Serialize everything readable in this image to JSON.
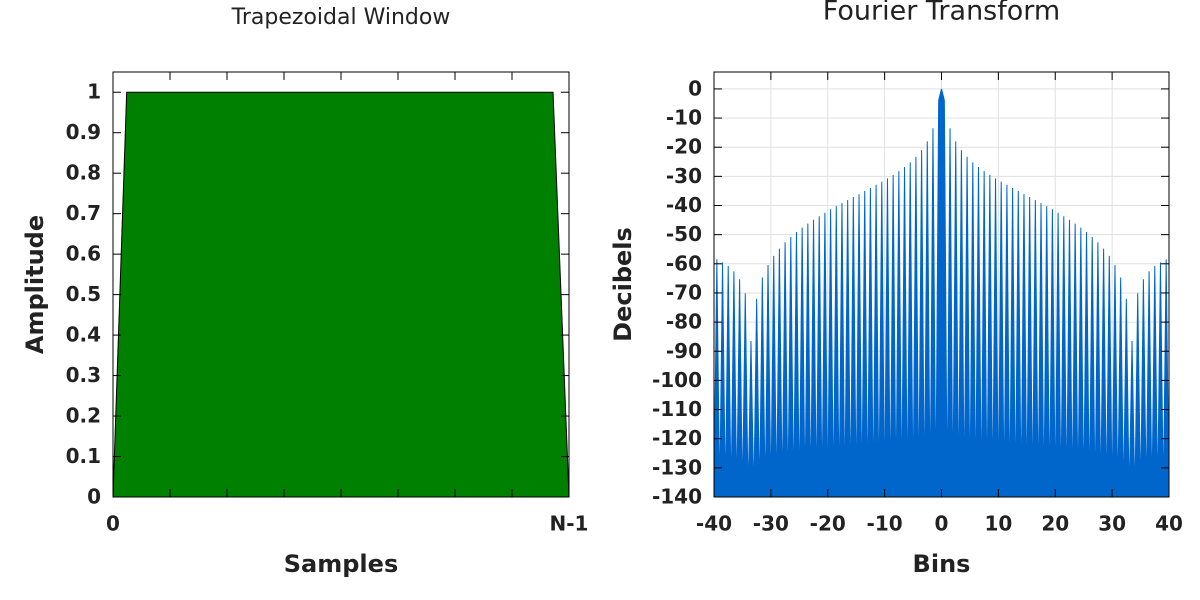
{
  "chart_data": [
    {
      "type": "area",
      "title": "Trapezoidal Window",
      "xlabel": "Samples",
      "ylabel": "Amplitude",
      "x": [
        0,
        0.03,
        0.965,
        1
      ],
      "values": [
        0,
        1,
        1,
        0
      ],
      "color": "#008000",
      "xlim": [
        0,
        1
      ],
      "ylim": [
        0,
        1.05
      ],
      "xticks": [
        0,
        {
          "value": 1,
          "label": "N-1"
        }
      ],
      "yticks": [
        0,
        0.1,
        0.2,
        0.3,
        0.4,
        0.5,
        0.6,
        0.7,
        0.8,
        0.9,
        1
      ],
      "grid": false
    },
    {
      "type": "area",
      "title": "Fourier Transform",
      "xlabel": "Bins",
      "ylabel": "Decibels",
      "x": [
        -40,
        -39.5,
        -39,
        -38.5,
        -38,
        -37.5,
        -37,
        -36.5,
        -36,
        -35.5,
        -35,
        -34.5,
        -34,
        -33.5,
        -33,
        -32.5,
        -32,
        -31.5,
        -31,
        -30.5,
        -30,
        -29.5,
        -29,
        -28.5,
        -28,
        -27.5,
        -27,
        -26.5,
        -26,
        -25.5,
        -25,
        -24.5,
        -24,
        -23.5,
        -23,
        -22.5,
        -22,
        -21.5,
        -21,
        -20.5,
        -20,
        -19.5,
        -19,
        -18.5,
        -18,
        -17.5,
        -17,
        -16.5,
        -16,
        -15.5,
        -15,
        -14.5,
        -14,
        -13.5,
        -13,
        -12.5,
        -12,
        -11.5,
        -11,
        -10.5,
        -10,
        -9.5,
        -9,
        -8.5,
        -8,
        -7.5,
        -7,
        -6.5,
        -6,
        -5.5,
        -5,
        -4.5,
        -4,
        -3.5,
        -3,
        -2.5,
        -2,
        -1.5,
        -1,
        -0.5,
        0,
        0.5,
        1,
        1.5,
        2,
        2.5,
        3,
        3.5,
        4,
        4.5,
        5,
        5.5,
        6,
        6.5,
        7,
        7.5,
        8,
        8.5,
        9,
        9.5,
        10,
        10.5,
        11,
        11.5,
        12,
        12.5,
        13,
        13.5,
        14,
        14.5,
        15,
        15.5,
        16,
        16.5,
        17,
        17.5,
        18,
        18.5,
        19,
        19.5,
        20,
        20.5,
        21,
        21.5,
        22,
        22.5,
        23,
        23.5,
        24,
        24.5,
        25,
        25.5,
        26,
        26.5,
        27,
        27.5,
        28,
        28.5,
        29,
        29.5,
        30,
        30.5,
        31,
        31.5,
        32,
        32.5,
        33,
        33.5,
        34,
        34.5,
        35,
        35.5,
        36,
        36.5,
        37,
        37.5,
        38,
        38.5,
        39,
        39.5,
        40
      ],
      "values": [
        -140,
        -58.5,
        -140,
        -59.5,
        -140,
        -60.7,
        -140,
        -62.6,
        -140,
        -65.3,
        -140,
        -70.1,
        -140,
        -86.5,
        -140,
        -72.0,
        -140,
        -64.7,
        -140,
        -60.4,
        -140,
        -57.3,
        -140,
        -54.8,
        -140,
        -52.6,
        -140,
        -50.8,
        -140,
        -49.1,
        -140,
        -47.6,
        -140,
        -46.2,
        -140,
        -44.9,
        -140,
        -43.7,
        -140,
        -42.5,
        -140,
        -41.3,
        -140,
        -40.2,
        -140,
        -39.2,
        -140,
        -38.1,
        -140,
        -37.1,
        -140,
        -36.1,
        -140,
        -35.0,
        -140,
        -34.0,
        -140,
        -32.9,
        -140,
        -31.8,
        -140,
        -30.7,
        -140,
        -29.5,
        -140,
        -28.2,
        -140,
        -26.8,
        -140,
        -25.2,
        -140,
        -23.3,
        -140,
        -21.0,
        -140,
        -18.0,
        -140,
        -13.5,
        -140,
        -3.9,
        0,
        -3.9,
        -140,
        -13.5,
        -140,
        -18.0,
        -140,
        -21.0,
        -140,
        -23.3,
        -140,
        -25.2,
        -140,
        -26.8,
        -140,
        -28.2,
        -140,
        -29.5,
        -140,
        -30.7,
        -140,
        -31.8,
        -140,
        -32.9,
        -140,
        -34.0,
        -140,
        -35.0,
        -140,
        -36.1,
        -140,
        -37.1,
        -140,
        -38.1,
        -140,
        -39.2,
        -140,
        -40.2,
        -140,
        -41.3,
        -140,
        -42.5,
        -140,
        -43.7,
        -140,
        -44.9,
        -140,
        -46.2,
        -140,
        -47.6,
        -140,
        -49.1,
        -140,
        -50.8,
        -140,
        -52.6,
        -140,
        -54.8,
        -140,
        -57.3,
        -140,
        -60.4,
        -140,
        -64.7,
        -140,
        -72.0,
        -140,
        -86.5,
        -140,
        -70.1,
        -140,
        -65.3,
        -140,
        -62.6,
        -140,
        -60.7,
        -140,
        -59.5,
        -140,
        -58.5,
        -140
      ],
      "color": "#0066cc",
      "xlim": [
        -40,
        40
      ],
      "ylim": [
        -140,
        5.8
      ],
      "xticks": [
        -40,
        -30,
        -20,
        -10,
        0,
        10,
        20,
        30,
        40
      ],
      "yticks": [
        0,
        -10,
        -20,
        -30,
        -40,
        -50,
        -60,
        -70,
        -80,
        -90,
        -100,
        -110,
        -120,
        -130,
        -140
      ],
      "grid": true
    }
  ]
}
